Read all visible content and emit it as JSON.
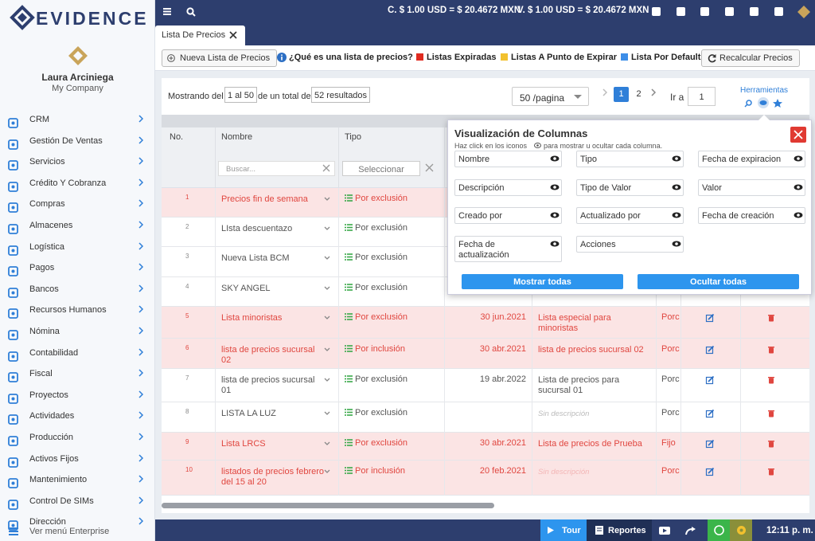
{
  "brand": "EVIDENCE",
  "user": {
    "name": "Laura Arciniega",
    "company": "My Company"
  },
  "menu": [
    "CRM",
    "Gestión De Ventas",
    "Servicios",
    "Crédito Y Cobranza",
    "Compras",
    "Almacenes",
    "Logística",
    "Pagos",
    "Bancos",
    "Recursos Humanos",
    "Nómina",
    "Contabilidad",
    "Fiscal",
    "Proyectos",
    "Actividades",
    "Producción",
    "Activos Fijos",
    "Mantenimiento",
    "Control De SIMs",
    "Dirección"
  ],
  "menu_footer": "Ver menú Enterprise",
  "topbar": {
    "rates": [
      "C. $ 1.00 USD = $ 20.4672 MXN",
      "V. $ 1.00 USD = $ 20.4672 MXN"
    ]
  },
  "tab": "Lista De Precios",
  "toolbar": {
    "new": "Nueva Lista de Precios",
    "help": "¿Qué es una lista de precios?",
    "legend": [
      {
        "label": "Listas Expiradas",
        "color": "#e02b20"
      },
      {
        "label": "Listas A Punto de Expirar",
        "color": "#f2c12e"
      },
      {
        "label": "Lista Por Default",
        "color": "#3d8ee8"
      }
    ],
    "recalc": "Recalcular Precios"
  },
  "pager": {
    "showing": "Mostrando del",
    "range": "1 al 50",
    "of": "de un total de",
    "total": "52 resultados",
    "page_size": "50 /pagina",
    "pages": [
      1,
      2
    ],
    "current": 1,
    "goto": "Ir a",
    "goto_value": 1,
    "tools": "Herramientas"
  },
  "table": {
    "headers": [
      "No.",
      "Nombre",
      "Tipo"
    ],
    "search_placeholder": "Buscar...",
    "select_placeholder": "Seleccionar",
    "empty_description": "Sin descripción",
    "rows": [
      {
        "no": 1,
        "name": "Precios fin de semana",
        "type": "Por exclusión",
        "expired": true
      },
      {
        "no": 2,
        "name": "LIsta descuentazo",
        "type": "Por exclusión",
        "expired": false
      },
      {
        "no": 3,
        "name": "Nueva Lista BCM",
        "type": "Por exclusión",
        "expired": false
      },
      {
        "no": 4,
        "name": "SKY ANGEL",
        "type": "Por exclusión",
        "expired": false
      },
      {
        "no": 5,
        "name": "Lista minoristas",
        "type": "Por exclusión",
        "expired": true,
        "expires": "30 jun.2021",
        "description": "Lista especial para minoristas",
        "value_type": "Porc"
      },
      {
        "no": 6,
        "name": "lista de precios sucursal 02",
        "type": "Por inclusión",
        "expired": true,
        "expires": "30 abr.2021",
        "description": "lista de precios sucursal 02",
        "value_type": "Porc"
      },
      {
        "no": 7,
        "name": "lista de precios sucursal 01",
        "type": "Por exclusión",
        "expired": false,
        "expires": "19 abr.2022",
        "description": "Lista de precios para sucursal 01",
        "value_type": "Porc"
      },
      {
        "no": 8,
        "name": "LISTA LA LUZ",
        "type": "Por exclusión",
        "expired": false,
        "expires": null,
        "description": null,
        "value_type": "Porc"
      },
      {
        "no": 9,
        "name": "Lista LRCS",
        "type": "Por exclusión",
        "expired": true,
        "expires": "30 abr.2021",
        "description": "Lista de precios de Prueba",
        "value_type": "Fijo"
      },
      {
        "no": 10,
        "name": "listados de precios febrero del 15 al 20",
        "type": "Por inclusión",
        "expired": true,
        "expires": "20 feb.2021",
        "description": null,
        "value_type": "Porc"
      }
    ]
  },
  "columns_popup": {
    "title": "Visualización de Columnas",
    "hint_start": "Haz click en los iconos",
    "hint_end": "para mostrar u ocultar cada columna.",
    "columns": [
      "Nombre",
      "Tipo",
      "Fecha de expiracion",
      "Descripción",
      "Tipo de Valor",
      "Valor",
      "Creado por",
      "Actualizado por",
      "Fecha de creación",
      "Fecha de actualización",
      "Acciones"
    ],
    "show_all": "Mostrar todas",
    "hide_all": "Ocultar todas"
  },
  "footer": {
    "tour": "Tour",
    "reports": "Reportes",
    "time": "12:11 p. m."
  }
}
